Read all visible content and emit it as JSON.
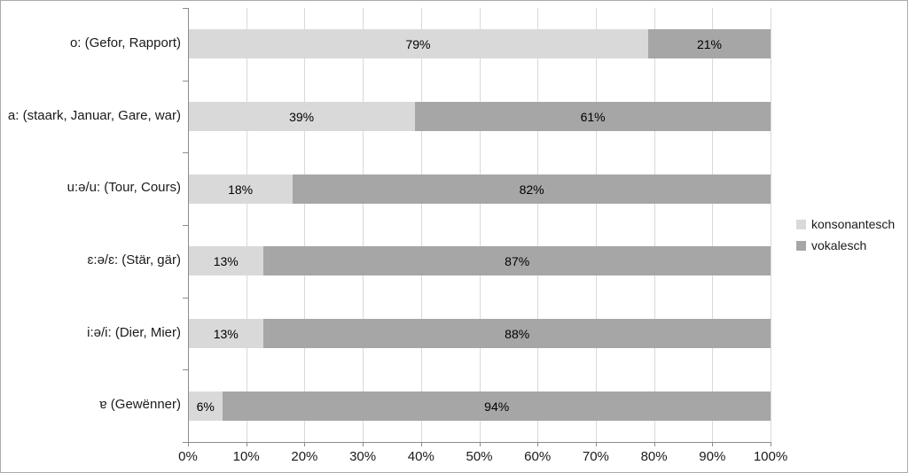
{
  "chart_data": {
    "type": "bar",
    "orientation": "horizontal-stacked",
    "title": "",
    "categories": [
      "o: (Gefor, Rapport)",
      "a: (staark, Januar, Gare, war)",
      "u:ə/u: (Tour, Cours)",
      "ɛ:ə/ɛ: (Stär, gär)",
      "i:ə/i: (Dier, Mier)",
      "ɐ (Gewënner)"
    ],
    "series": [
      {
        "name": "konsonantesch",
        "color": "#d9d9d9",
        "values": [
          79,
          39,
          18,
          13,
          13,
          6
        ],
        "labels": [
          "79%",
          "39%",
          "18%",
          "13%",
          "13%",
          "6%"
        ]
      },
      {
        "name": "vokalesch",
        "color": "#a6a6a6",
        "values": [
          21,
          61,
          82,
          87,
          88,
          94
        ],
        "labels": [
          "21%",
          "61%",
          "82%",
          "87%",
          "88%",
          "94%"
        ]
      }
    ],
    "x_ticks": [
      "0%",
      "10%",
      "20%",
      "30%",
      "40%",
      "50%",
      "60%",
      "70%",
      "80%",
      "90%",
      "100%"
    ],
    "xlim": [
      0,
      100
    ],
    "grid": "vertical",
    "legend_position": "right"
  },
  "colors": {
    "segment_light": "#d9d9d9",
    "segment_dark": "#a6a6a6",
    "gridline": "#d9d9d9",
    "axis": "#8c8c8c",
    "label_text": "#000000"
  }
}
